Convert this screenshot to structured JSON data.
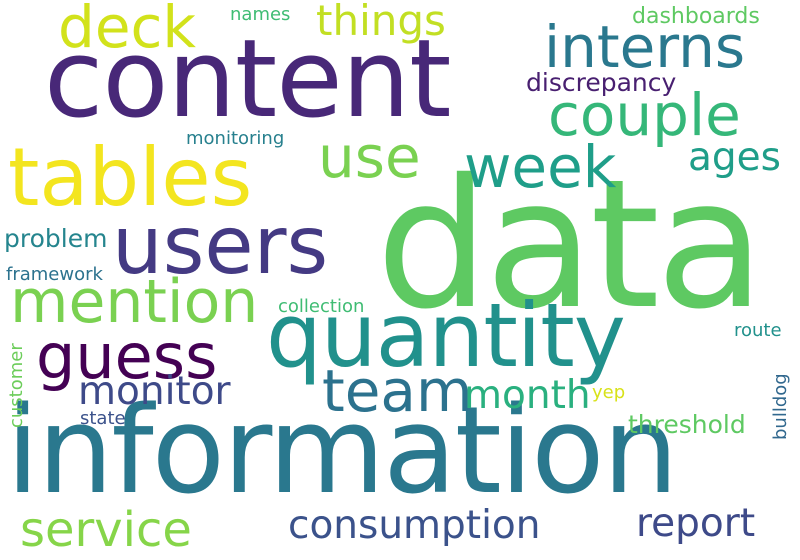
{
  "cloud": {
    "background": "#ffffff",
    "words": [
      {
        "text": "data",
        "color": "#5ec962"
      },
      {
        "text": "information",
        "color": "#2a788e"
      },
      {
        "text": "content",
        "color": "#482878"
      },
      {
        "text": "quantity",
        "color": "#21918c"
      },
      {
        "text": "tables",
        "color": "#f3e51f"
      },
      {
        "text": "users",
        "color": "#443a83"
      },
      {
        "text": "mention",
        "color": "#7ad151"
      },
      {
        "text": "interns",
        "color": "#2a788e"
      },
      {
        "text": "team",
        "color": "#2c728e"
      },
      {
        "text": "week",
        "color": "#1f9e89"
      },
      {
        "text": "guess",
        "color": "#440154"
      },
      {
        "text": "couple",
        "color": "#35b779"
      },
      {
        "text": "use",
        "color": "#7ad151"
      },
      {
        "text": "deck",
        "color": "#d2e21b"
      },
      {
        "text": "things",
        "color": "#c2df23"
      },
      {
        "text": "service",
        "color": "#86d549"
      },
      {
        "text": "consumption",
        "color": "#3b528b"
      },
      {
        "text": "report",
        "color": "#3e4a89"
      },
      {
        "text": "monitor",
        "color": "#3e4a89"
      },
      {
        "text": "month",
        "color": "#2ab07f"
      },
      {
        "text": "ages",
        "color": "#1f9e89"
      },
      {
        "text": "discrepancy",
        "color": "#481f70"
      },
      {
        "text": "problem",
        "color": "#25858e"
      },
      {
        "text": "threshold",
        "color": "#5ec962"
      },
      {
        "text": "dashboards",
        "color": "#5ec962"
      },
      {
        "text": "monitoring",
        "color": "#27808e"
      },
      {
        "text": "framework",
        "color": "#2c728e"
      },
      {
        "text": "collection",
        "color": "#3fbc73"
      },
      {
        "text": "names",
        "color": "#3fbc73"
      },
      {
        "text": "route",
        "color": "#21918c"
      },
      {
        "text": "state",
        "color": "#3b528b"
      },
      {
        "text": "yep",
        "color": "#d8e219"
      },
      {
        "text": "customer",
        "color": "#6ccd5a"
      },
      {
        "text": "bulldog",
        "color": "#31688e"
      }
    ]
  }
}
